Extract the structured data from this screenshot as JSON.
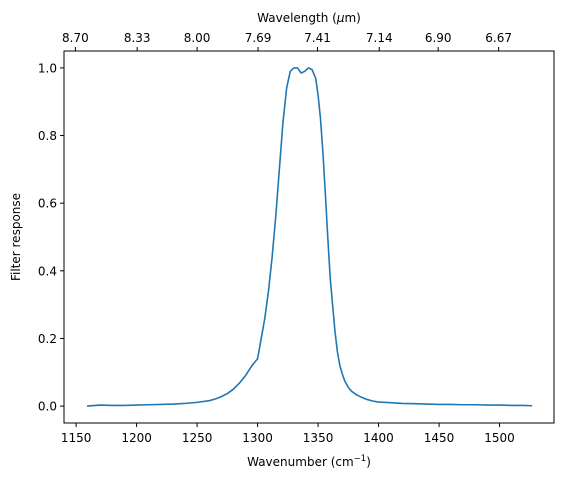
{
  "chart_data": {
    "type": "line",
    "title": "",
    "xlabel": "Wavenumber (cm",
    "xlabel_sup": "−1",
    "xlabel_suffix": ")",
    "ylabel": "Filter response",
    "x2label": "Wavelength (",
    "x2label_mu": "μ",
    "x2label_suffix": "m)",
    "xlim": [
      1140,
      1545
    ],
    "ylim": [
      -0.05,
      1.05
    ],
    "grid": false,
    "x_ticks": [
      1150,
      1200,
      1250,
      1300,
      1350,
      1400,
      1450,
      1500
    ],
    "x_tick_labels": [
      "1150",
      "1200",
      "1250",
      "1300",
      "1350",
      "1400",
      "1450",
      "1500"
    ],
    "y_ticks": [
      0.0,
      0.2,
      0.4,
      0.6,
      0.8,
      1.0
    ],
    "y_tick_labels": [
      "0.0",
      "0.2",
      "0.4",
      "0.6",
      "0.8",
      "1.0"
    ],
    "x2_ticks": [
      8.7,
      8.33,
      8.0,
      7.69,
      7.41,
      7.14,
      6.9,
      6.67
    ],
    "x2_tick_labels": [
      "8.70",
      "8.33",
      "8.00",
      "7.69",
      "7.41",
      "7.14",
      "6.90",
      "6.67"
    ],
    "color": "#1f77b4",
    "series": [
      {
        "x": [
          1159,
          1170,
          1180,
          1190,
          1200,
          1210,
          1220,
          1230,
          1240,
          1250,
          1260,
          1265,
          1270,
          1275,
          1280,
          1285,
          1290,
          1295,
          1300,
          1303,
          1306,
          1309,
          1312,
          1315,
          1318,
          1321,
          1324,
          1327,
          1330,
          1333,
          1336,
          1339,
          1342,
          1345,
          1348,
          1350,
          1352,
          1354,
          1356,
          1358,
          1360,
          1362,
          1364,
          1366,
          1368,
          1370,
          1372,
          1375,
          1378,
          1382,
          1386,
          1390,
          1395,
          1400,
          1410,
          1420,
          1430,
          1440,
          1450,
          1460,
          1470,
          1480,
          1490,
          1500,
          1510,
          1520,
          1527
        ],
        "y": [
          0.0,
          0.003,
          0.002,
          0.002,
          0.003,
          0.004,
          0.005,
          0.006,
          0.008,
          0.011,
          0.016,
          0.021,
          0.028,
          0.037,
          0.05,
          0.068,
          0.09,
          0.118,
          0.14,
          0.2,
          0.26,
          0.34,
          0.44,
          0.56,
          0.7,
          0.84,
          0.94,
          0.99,
          1.0,
          1.0,
          0.985,
          0.99,
          1.0,
          0.995,
          0.97,
          0.92,
          0.85,
          0.75,
          0.63,
          0.5,
          0.38,
          0.3,
          0.22,
          0.16,
          0.12,
          0.095,
          0.075,
          0.055,
          0.043,
          0.033,
          0.026,
          0.02,
          0.015,
          0.012,
          0.01,
          0.008,
          0.007,
          0.006,
          0.005,
          0.005,
          0.004,
          0.004,
          0.003,
          0.003,
          0.002,
          0.002,
          0.001
        ]
      }
    ]
  }
}
